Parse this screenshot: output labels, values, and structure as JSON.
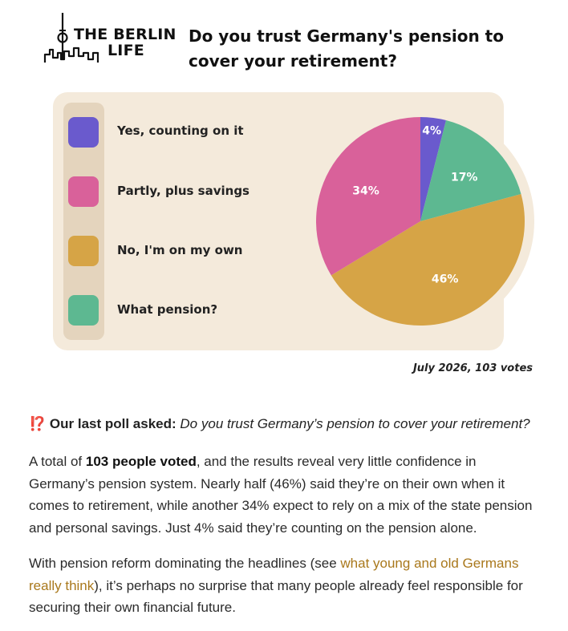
{
  "header": {
    "logo_line1": "THE BERLIN",
    "logo_line2": "LIFE",
    "title": "Do you trust Germany's pension to cover your retirement?"
  },
  "chart_data": {
    "type": "pie",
    "categories": [
      "Yes, counting on it",
      "Partly, plus savings",
      "No, I'm on my own",
      "What pension?"
    ],
    "values": [
      4,
      34,
      46,
      17
    ],
    "labels": [
      "4%",
      "34%",
      "46%",
      "17%"
    ],
    "colors": [
      "#6a5acd",
      "#d9619a",
      "#d6a446",
      "#5db891"
    ],
    "legend_position": "left"
  },
  "caption": "July 2026, 103 votes",
  "poll": {
    "icon": "⁉️",
    "lead": "Our last poll asked:",
    "question": "Do you trust Germany’s pension to cover your retirement?"
  },
  "paragraph1": {
    "pre": "A total of ",
    "bold": "103 people voted",
    "post": ", and the results reveal very little confidence in Germany’s pension system. Nearly half (46%) said they’re on their own when it comes to retirement, while another 34% expect to rely on a mix of the state pension and personal savings. Just 4% said they’re counting on the pension alone."
  },
  "paragraph2": {
    "pre": "With pension reform dominating the headlines (see ",
    "link": "what young and old Germans really think",
    "post": "), it’s perhaps no surprise that many people already feel responsible for securing their own financial future."
  }
}
